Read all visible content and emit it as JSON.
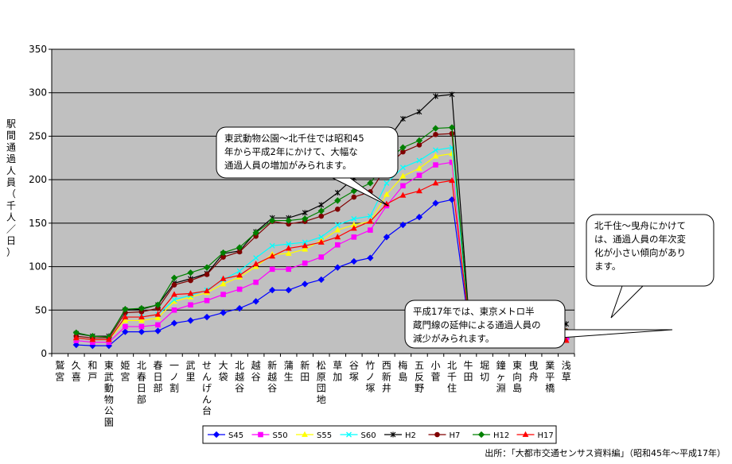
{
  "chart_data": {
    "type": "line",
    "ylabel": "駅間通過人員（千人／日）",
    "ylim": [
      0,
      350
    ],
    "yticks": [
      0,
      50,
      100,
      150,
      200,
      250,
      300,
      350
    ],
    "grid": true,
    "legend_placement": "bottom",
    "categories": [
      "鷲宮",
      "久喜",
      "和戸",
      "東武動物公園",
      "姫宮",
      "北春日部",
      "春日部",
      "一ノ割",
      "武里",
      "せんげん台",
      "大袋",
      "北越谷",
      "越谷",
      "新越谷",
      "蒲生",
      "新田",
      "松原団地",
      "草加",
      "谷塚",
      "竹ノ塚",
      "西新井",
      "梅島",
      "五反野",
      "小菅",
      "北千住",
      "牛田",
      "堀切",
      "鐘ヶ淵",
      "東向島",
      "曳舟",
      "業平橋",
      "浅草"
    ],
    "series": [
      {
        "name": "S45",
        "color": "#0000ff",
        "marker": "diamond",
        "values": [
          null,
          10,
          9,
          9,
          25,
          25,
          26,
          35,
          38,
          42,
          47,
          52,
          60,
          73,
          73,
          80,
          85,
          99,
          106,
          110,
          134,
          148,
          157,
          173,
          177,
          38,
          32,
          32,
          31,
          31,
          20,
          17
        ]
      },
      {
        "name": "S50",
        "color": "#ff00ff",
        "marker": "square",
        "values": [
          null,
          15,
          13,
          13,
          31,
          31,
          33,
          50,
          56,
          61,
          68,
          74,
          82,
          97,
          97,
          104,
          111,
          125,
          134,
          142,
          170,
          193,
          205,
          217,
          220,
          40,
          34,
          34,
          34,
          34,
          24,
          18
        ]
      },
      {
        "name": "S55",
        "color": "#ffff00",
        "marker": "triangle",
        "values": [
          null,
          18,
          16,
          16,
          38,
          38,
          41,
          60,
          65,
          70,
          80,
          88,
          100,
          114,
          115,
          120,
          130,
          142,
          148,
          152,
          183,
          204,
          213,
          227,
          230,
          43,
          36,
          36,
          36,
          36,
          27,
          22
        ]
      },
      {
        "name": "S60",
        "color": "#00ffff",
        "marker": "x",
        "values": [
          null,
          18,
          16,
          16,
          42,
          42,
          45,
          62,
          67,
          73,
          85,
          95,
          110,
          124,
          126,
          128,
          134,
          148,
          155,
          158,
          196,
          214,
          222,
          234,
          237,
          44,
          37,
          37,
          37,
          37,
          28,
          23
        ]
      },
      {
        "name": "H2",
        "color": "#000000",
        "marker": "star",
        "values": [
          null,
          23,
          20,
          20,
          50,
          51,
          56,
          81,
          86,
          92,
          115,
          118,
          140,
          156,
          156,
          162,
          171,
          185,
          202,
          210,
          244,
          270,
          278,
          296,
          298,
          52,
          47,
          46,
          47,
          47,
          37,
          34
        ]
      },
      {
        "name": "H7",
        "color": "#800000",
        "marker": "circle",
        "values": [
          null,
          20,
          18,
          18,
          47,
          48,
          52,
          79,
          84,
          91,
          111,
          117,
          135,
          152,
          149,
          152,
          158,
          166,
          180,
          186,
          215,
          232,
          240,
          252,
          253,
          48,
          41,
          41,
          41,
          41,
          30,
          26
        ]
      },
      {
        "name": "H12",
        "color": "#008000",
        "marker": "diamond",
        "values": [
          null,
          24,
          20,
          19,
          51,
          52,
          56,
          87,
          93,
          99,
          116,
          122,
          139,
          153,
          153,
          155,
          164,
          176,
          187,
          196,
          222,
          237,
          245,
          259,
          260,
          46,
          39,
          39,
          39,
          40,
          29,
          25
        ]
      },
      {
        "name": "H17",
        "color": "#ff0000",
        "marker": "triangle",
        "values": [
          null,
          18,
          16,
          16,
          42,
          42,
          45,
          68,
          69,
          72,
          86,
          90,
          103,
          112,
          121,
          124,
          128,
          134,
          144,
          152,
          172,
          182,
          187,
          196,
          199,
          43,
          37,
          37,
          37,
          36,
          24,
          15
        ]
      }
    ],
    "annotations": [
      {
        "lines": [
          "東武動物公園～北千住では昭和45",
          "年から平成2年にかけて、大幅な",
          "通過人員の増加がみられます。"
        ]
      },
      {
        "lines": [
          "北千住～曳舟にかけて",
          "は、通過人員の年次変",
          "化が小さい傾向があり",
          "ます。"
        ]
      },
      {
        "lines": [
          "平成17年では、東京メトロ半",
          "蔵門線の延伸による通過人員の",
          "減少がみられます。"
        ]
      }
    ],
    "source": "出所：「大都市交通センサス資料編」（昭和45年～平成17年）"
  }
}
